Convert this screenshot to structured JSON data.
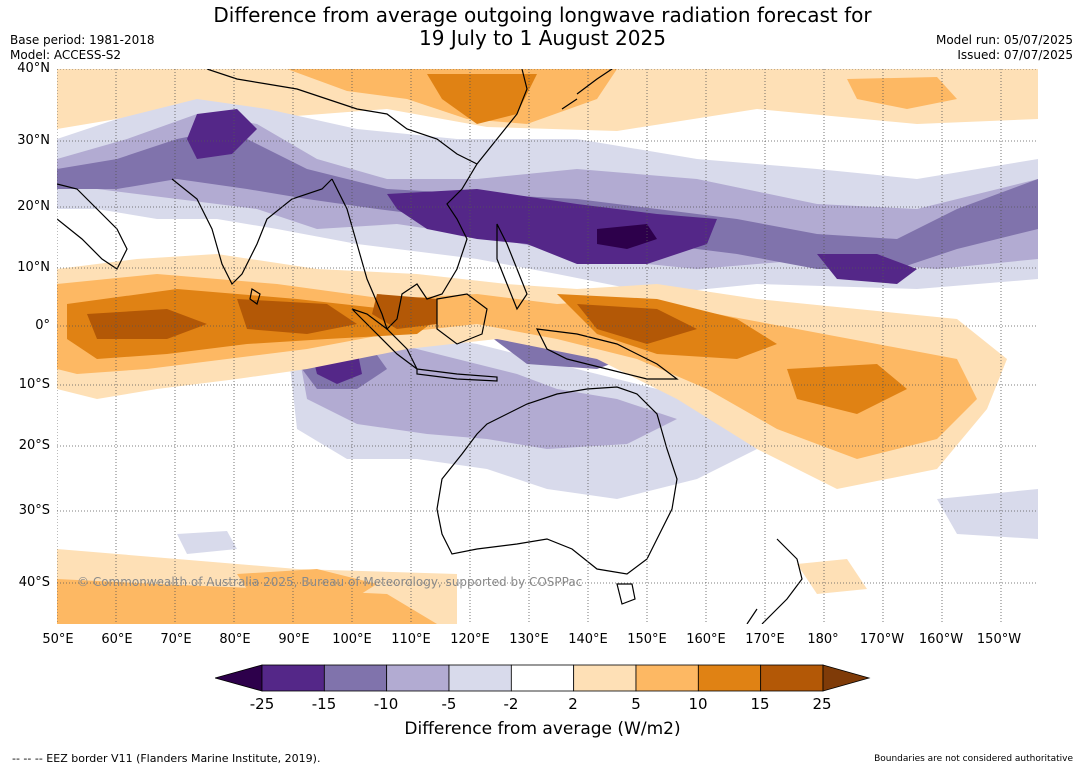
{
  "title": {
    "line1": "Difference from average outgoing longwave radiation forecast for",
    "line2": "19 July to 1 August 2025"
  },
  "meta_left": {
    "base_period": "Base period: 1981-2018",
    "model": "Model: ACCESS-S2"
  },
  "meta_right": {
    "model_run": "Model run: 05/07/2025",
    "issued": "Issued: 07/07/2025"
  },
  "lat_labels": [
    "40°N",
    "30°N",
    "20°N",
    "10°N",
    "0°",
    "10°S",
    "20°S",
    "30°S",
    "40°S"
  ],
  "lon_labels": [
    "50°E",
    "60°E",
    "70°E",
    "80°E",
    "90°E",
    "100°E",
    "110°E",
    "120°E",
    "130°E",
    "140°E",
    "150°E",
    "160°E",
    "170°E",
    "180°",
    "170°W",
    "160°W",
    "150°W"
  ],
  "copyright": "© Commonwealth of Australia 2025, Bureau of Meteorology, supported by COSPPac",
  "colorbar": {
    "ticks": [
      "-25",
      "-15",
      "-10",
      "-5",
      "-2",
      "2",
      "5",
      "10",
      "15",
      "25"
    ],
    "colors": [
      "#2d004b",
      "#542788",
      "#8073ac",
      "#b2abd2",
      "#d8daeb",
      "#ffffff",
      "#fee0b6",
      "#fdb863",
      "#e08214",
      "#b35806",
      "#7f3b08"
    ],
    "label": "Difference from average (W/m2)"
  },
  "footer": {
    "eez": "--  --  -- EEZ border V11 (Flanders Marine Institute, 2019).",
    "disclaimer": "Boundaries are not considered authoritative"
  }
}
